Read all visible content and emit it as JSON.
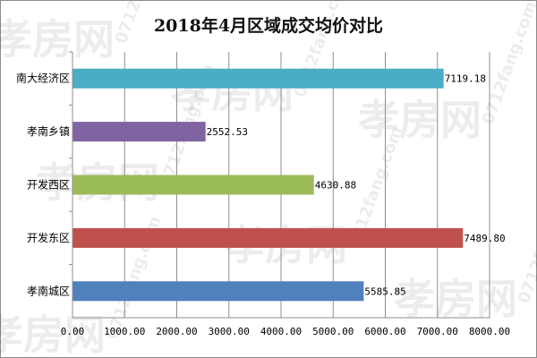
{
  "chart_data": {
    "type": "bar",
    "orientation": "horizontal",
    "title": "2018年4月区域成交均价对比",
    "categories": [
      "南大经济区",
      "孝南乡镇",
      "开发西区",
      "开发东区",
      "孝南城区"
    ],
    "values": [
      7119.18,
      2552.53,
      4630.88,
      7489.8,
      5585.85
    ],
    "value_labels": [
      "7119.18",
      "2552.53",
      "4630.88",
      "7489.80",
      "5585.85"
    ],
    "colors": [
      "#4bacc6",
      "#8064a2",
      "#9bbb59",
      "#c0504d",
      "#4f81bd"
    ],
    "xlim": [
      0,
      8000
    ],
    "x_ticks": [
      "0.00",
      "1000.00",
      "2000.00",
      "3000.00",
      "4000.00",
      "5000.00",
      "6000.00",
      "7000.00",
      "8000.00"
    ],
    "grid": true,
    "legend": "none"
  },
  "watermark": [
    "孝房网",
    "0712fang.com"
  ]
}
